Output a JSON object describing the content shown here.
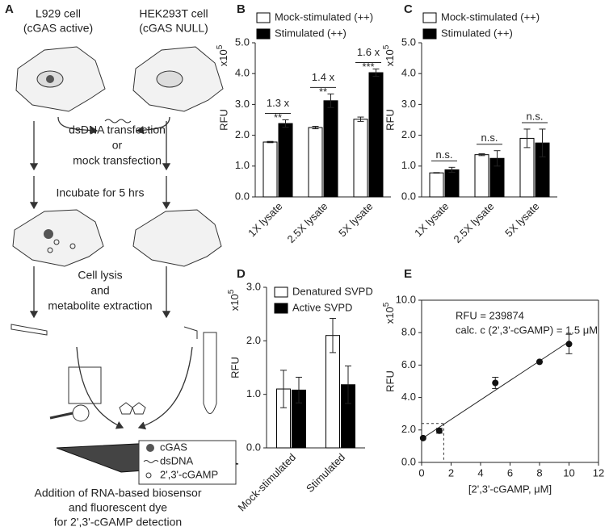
{
  "diagram": {
    "label": "A",
    "left_cell": [
      "L929 cell",
      "(cGAS active)"
    ],
    "right_cell": [
      "HEK293T cell",
      "(cGAS NULL)"
    ],
    "step1": [
      "dsDNA transfection",
      "or",
      "mock transfection"
    ],
    "step2": "Incubate for 5 hrs",
    "step3": [
      "Cell lysis",
      "and",
      "metabolite extraction"
    ],
    "legend": [
      "cGAS",
      "dsDNA",
      "2',3'-cGAMP"
    ],
    "caption": [
      "Addition of RNA-based biosensor",
      "and fluorescent dye",
      "for 2',3'-cGAMP detection"
    ]
  },
  "chart_data": [
    {
      "type": "bar",
      "panel": "B",
      "ylabel": "RFU",
      "unit": {
        "base": "x10",
        "exponent": "5"
      },
      "categories": [
        "1X lysate",
        "2.5X lysate",
        "5X lysate"
      ],
      "series": [
        {
          "name": "Mock-stimulated (++)",
          "color": "#ffffff",
          "values": [
            1.78,
            2.25,
            2.52
          ],
          "errors": [
            0.02,
            0.04,
            0.07
          ]
        },
        {
          "name": "Stimulated (++)",
          "color": "#000000",
          "values": [
            2.38,
            3.12,
            4.03
          ],
          "errors": [
            0.12,
            0.22,
            0.12
          ]
        }
      ],
      "annotations": [
        [
          "1.3 x",
          "**"
        ],
        [
          "1.4 x",
          "**"
        ],
        [
          "1.6 x",
          "***"
        ]
      ],
      "ylim": [
        0,
        5
      ],
      "yticks": [
        {
          "value": 0,
          "label": "0.0"
        },
        {
          "value": 1,
          "label": "1.0"
        },
        {
          "value": 2,
          "label": "2.0"
        },
        {
          "value": 3,
          "label": "3.0"
        },
        {
          "value": 4,
          "label": "4.0"
        },
        {
          "value": 5,
          "label": "5.0"
        }
      ]
    },
    {
      "type": "bar",
      "panel": "C",
      "ylabel": "RFU",
      "unit": {
        "base": "x10",
        "exponent": "5"
      },
      "categories": [
        "1X lysate",
        "2.5X lysate",
        "5X lysate"
      ],
      "series": [
        {
          "name": "Mock-stimulated (++)",
          "color": "#ffffff",
          "values": [
            0.78,
            1.37,
            1.9
          ],
          "errors": [
            0.01,
            0.03,
            0.3
          ]
        },
        {
          "name": "Stimulated (++)",
          "color": "#000000",
          "values": [
            0.88,
            1.25,
            1.75
          ],
          "errors": [
            0.08,
            0.25,
            0.45
          ]
        }
      ],
      "annotations": [
        [
          "n.s."
        ],
        [
          "n.s."
        ],
        [
          "n.s."
        ]
      ],
      "ylim": [
        0,
        5
      ],
      "yticks": [
        {
          "value": 0,
          "label": "0.0"
        },
        {
          "value": 1,
          "label": "1.0"
        },
        {
          "value": 2,
          "label": "2.0"
        },
        {
          "value": 3,
          "label": "3.0"
        },
        {
          "value": 4,
          "label": "4.0"
        },
        {
          "value": 5,
          "label": "5.0"
        }
      ]
    },
    {
      "type": "bar",
      "panel": "D",
      "ylabel": "RFU",
      "unit": {
        "base": "x10",
        "exponent": "5"
      },
      "categories": [
        "Mock-stimulated",
        "Stimulated"
      ],
      "series": [
        {
          "name": "Denatured SVPD",
          "color": "#ffffff",
          "values": [
            1.1,
            2.1
          ],
          "errors": [
            0.35,
            0.32
          ]
        },
        {
          "name": "Active SVPD",
          "color": "#000000",
          "values": [
            1.08,
            1.18
          ],
          "errors": [
            0.24,
            0.35
          ]
        }
      ],
      "ylim": [
        0,
        3
      ],
      "yticks": [
        {
          "value": 0,
          "label": "0.0"
        },
        {
          "value": 1,
          "label": "1.0"
        },
        {
          "value": 2,
          "label": "2.0"
        },
        {
          "value": 3,
          "label": "3.0"
        }
      ]
    },
    {
      "type": "scatter",
      "panel": "E",
      "ylabel": "RFU",
      "unit": {
        "base": "x10",
        "exponent": "5"
      },
      "xlabel": "[2',3'-cGAMP, μM]",
      "annotations": [
        "RFU = 239874",
        "calc. c (2',3'-cGAMP) = 1.5 μM"
      ],
      "x": [
        0.1,
        1.2,
        5,
        8,
        10
      ],
      "values": [
        1.5,
        1.95,
        4.9,
        6.2,
        7.3
      ],
      "errors": [
        null,
        0.15,
        0.35,
        null,
        0.6
      ],
      "fit": {
        "x": [
          0,
          10
        ],
        "y": [
          1.45,
          7.45
        ]
      },
      "guide": {
        "x": 1.5,
        "y": 2.4
      },
      "xlim": [
        0,
        12
      ],
      "xticks": [
        0,
        2,
        4,
        6,
        8,
        10,
        12
      ],
      "ylim": [
        0,
        10
      ],
      "yticks": [
        {
          "value": 0,
          "label": "0.0"
        },
        {
          "value": 2,
          "label": "2.0"
        },
        {
          "value": 4,
          "label": "4.0"
        },
        {
          "value": 6,
          "label": "6.0"
        },
        {
          "value": 8,
          "label": "8.0"
        },
        {
          "value": 10,
          "label": "10.0"
        }
      ]
    }
  ]
}
